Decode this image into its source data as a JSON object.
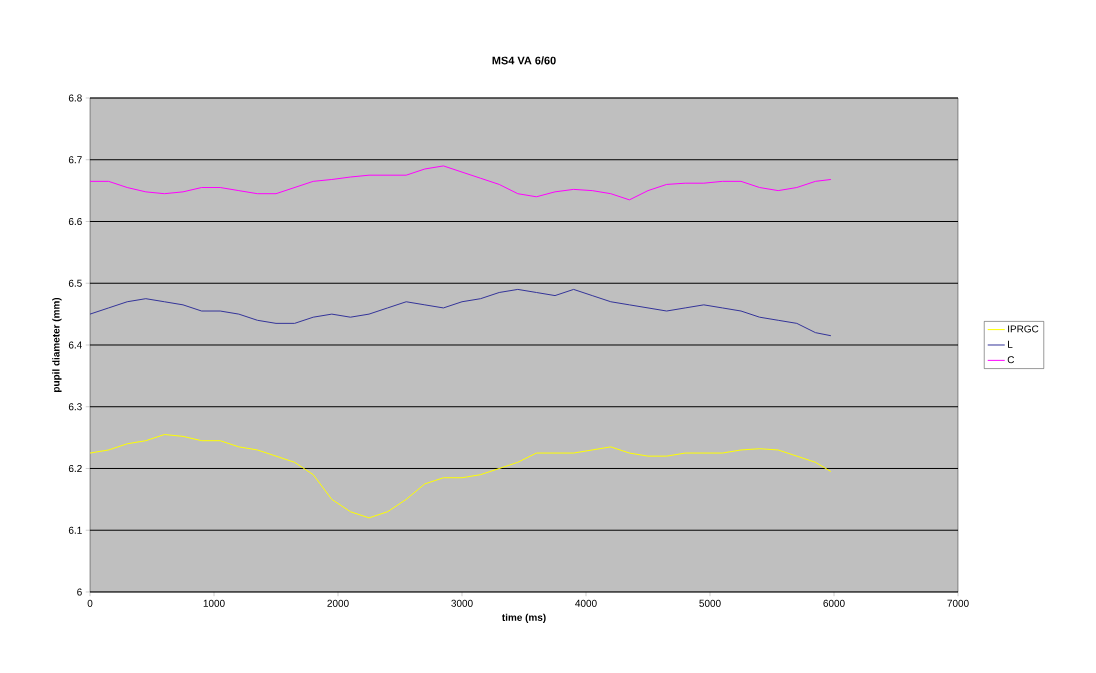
{
  "chart_data": {
    "type": "line",
    "title": "MS4 VA 6/60",
    "xlabel": "time (ms)",
    "ylabel": "pupil diameter (mm)",
    "x": [
      0,
      150,
      300,
      450,
      600,
      750,
      900,
      1050,
      1200,
      1350,
      1500,
      1650,
      1800,
      1950,
      2100,
      2250,
      2400,
      2550,
      2700,
      2850,
      3000,
      3150,
      3300,
      3450,
      3600,
      3750,
      3900,
      4050,
      4200,
      4350,
      4500,
      4650,
      4800,
      4950,
      5100,
      5250,
      5400,
      5550,
      5700,
      5850,
      5975
    ],
    "series": [
      {
        "name": "IPRGC",
        "color": "#ffff00",
        "values": [
          6.225,
          6.23,
          6.24,
          6.245,
          6.255,
          6.252,
          6.245,
          6.245,
          6.235,
          6.23,
          6.22,
          6.21,
          6.19,
          6.15,
          6.13,
          6.12,
          6.13,
          6.15,
          6.175,
          6.185,
          6.185,
          6.19,
          6.2,
          6.21,
          6.225,
          6.225,
          6.225,
          6.23,
          6.235,
          6.225,
          6.22,
          6.22,
          6.225,
          6.225,
          6.225,
          6.23,
          6.232,
          6.23,
          6.22,
          6.21,
          6.195
        ]
      },
      {
        "name": "L",
        "color": "#333399",
        "values": [
          6.45,
          6.46,
          6.47,
          6.475,
          6.47,
          6.465,
          6.455,
          6.455,
          6.45,
          6.44,
          6.435,
          6.435,
          6.445,
          6.45,
          6.445,
          6.45,
          6.46,
          6.47,
          6.465,
          6.46,
          6.47,
          6.475,
          6.485,
          6.49,
          6.485,
          6.48,
          6.49,
          6.48,
          6.47,
          6.465,
          6.46,
          6.455,
          6.46,
          6.465,
          6.46,
          6.455,
          6.445,
          6.44,
          6.435,
          6.42,
          6.415
        ]
      },
      {
        "name": "C",
        "color": "#ff00ff",
        "values": [
          6.665,
          6.665,
          6.655,
          6.648,
          6.645,
          6.648,
          6.655,
          6.655,
          6.65,
          6.645,
          6.645,
          6.655,
          6.665,
          6.668,
          6.672,
          6.675,
          6.675,
          6.675,
          6.685,
          6.69,
          6.68,
          6.67,
          6.66,
          6.645,
          6.64,
          6.648,
          6.652,
          6.65,
          6.645,
          6.635,
          6.65,
          6.66,
          6.662,
          6.662,
          6.665,
          6.665,
          6.655,
          6.65,
          6.655,
          6.665,
          6.668
        ]
      }
    ],
    "xlim": [
      0,
      7000
    ],
    "xticks": [
      0,
      1000,
      2000,
      3000,
      4000,
      5000,
      6000,
      7000
    ],
    "ylim": [
      6,
      6.8
    ],
    "yticks": [
      6,
      6.1,
      6.2,
      6.3,
      6.4,
      6.5,
      6.6,
      6.7,
      6.8
    ],
    "grid": "y",
    "legend": "right",
    "marker": "none",
    "line_style": "solid"
  }
}
